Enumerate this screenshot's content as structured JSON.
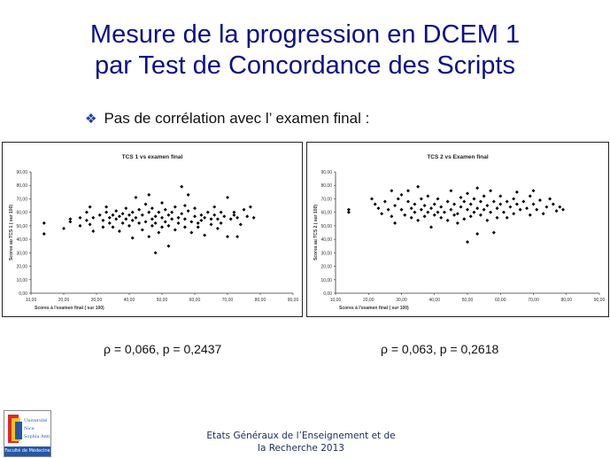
{
  "slide": {
    "title_line1": "Mesure de la progression en DCEM 1",
    "title_line2": "par Test de Concordance des Scripts",
    "bullet_text": "Pas de corrélation avec l’ examen final :",
    "stat_left": "ρ = 0,066, p = 0,2437",
    "stat_right": "ρ = 0,063, p = 0,2618",
    "footer_line1": "Etats Généraux de l’Enseignement et de",
    "footer_line2": "la Recherche 2013",
    "logo_text": "Université Nice Sophia Antipolis",
    "logo_faculty": "Faculté de Médecine"
  },
  "colors": {
    "title": "#0d0f8a",
    "bullet_icon": "#1f3fa8",
    "marker": "#000000",
    "logo_bar": "#2458a6"
  },
  "icons": {
    "bullet": "diamond-cluster-icon"
  },
  "chart_data": [
    {
      "type": "scatter",
      "title": "TCS 1  vs examen final",
      "xlabel": "Scores à l'examen final ( sur 100)",
      "ylabel": "Scores au TCS 1 ( sur 100)",
      "xlim": [
        10,
        90
      ],
      "ylim": [
        0,
        90
      ],
      "x_ticks": [
        "10,00",
        "20,00",
        "30,00",
        "40,00",
        "50,00",
        "60,00",
        "70,00",
        "80,00",
        "90,00"
      ],
      "y_ticks": [
        "0,00",
        "10,00",
        "20,00",
        "30,00",
        "40,00",
        "50,00",
        "60,00",
        "70,00",
        "80,00",
        "90,00"
      ],
      "grid": false,
      "legend": "none",
      "points": [
        [
          14,
          52
        ],
        [
          14,
          44
        ],
        [
          20,
          48
        ],
        [
          22,
          55
        ],
        [
          22,
          53
        ],
        [
          25,
          50
        ],
        [
          25,
          56
        ],
        [
          27,
          54
        ],
        [
          27,
          60
        ],
        [
          28,
          51
        ],
        [
          28,
          64
        ],
        [
          29,
          56
        ],
        [
          29,
          46
        ],
        [
          31,
          58
        ],
        [
          32,
          54
        ],
        [
          32,
          49
        ],
        [
          33,
          60
        ],
        [
          33,
          64
        ],
        [
          34,
          56
        ],
        [
          34,
          52
        ],
        [
          35,
          58
        ],
        [
          35,
          49
        ],
        [
          36,
          55
        ],
        [
          36,
          61
        ],
        [
          37,
          57
        ],
        [
          37,
          46
        ],
        [
          38,
          52
        ],
        [
          38,
          59
        ],
        [
          39,
          55
        ],
        [
          39,
          63
        ],
        [
          40,
          50
        ],
        [
          40,
          58
        ],
        [
          41,
          54
        ],
        [
          41,
          41
        ],
        [
          41,
          60
        ],
        [
          42,
          56
        ],
        [
          42,
          71
        ],
        [
          43,
          52
        ],
        [
          43,
          62
        ],
        [
          44,
          47
        ],
        [
          44,
          58
        ],
        [
          45,
          53
        ],
        [
          45,
          66
        ],
        [
          46,
          60
        ],
        [
          46,
          42
        ],
        [
          46,
          73
        ],
        [
          47,
          55
        ],
        [
          47,
          50
        ],
        [
          47,
          63
        ],
        [
          48,
          57
        ],
        [
          48,
          30
        ],
        [
          48,
          52
        ],
        [
          49,
          60
        ],
        [
          49,
          45
        ],
        [
          50,
          56
        ],
        [
          50,
          67
        ],
        [
          50,
          49
        ],
        [
          51,
          53
        ],
        [
          51,
          62
        ],
        [
          52,
          58
        ],
        [
          52,
          50
        ],
        [
          52,
          35
        ],
        [
          53,
          55
        ],
        [
          53,
          60
        ],
        [
          54,
          47
        ],
        [
          54,
          64
        ],
        [
          55,
          56
        ],
        [
          55,
          52
        ],
        [
          56,
          59
        ],
        [
          56,
          79
        ],
        [
          57,
          49
        ],
        [
          57,
          65
        ],
        [
          57,
          55
        ],
        [
          58,
          61
        ],
        [
          58,
          73
        ],
        [
          59,
          53
        ],
        [
          59,
          45
        ],
        [
          60,
          57
        ],
        [
          60,
          63
        ],
        [
          61,
          52
        ],
        [
          61,
          49
        ],
        [
          62,
          58
        ],
        [
          62,
          54
        ],
        [
          63,
          43
        ],
        [
          63,
          56
        ],
        [
          64,
          60
        ],
        [
          65,
          55
        ],
        [
          65,
          51
        ],
        [
          66,
          58
        ],
        [
          66,
          64
        ],
        [
          67,
          48
        ],
        [
          67,
          55
        ],
        [
          68,
          60
        ],
        [
          68,
          52
        ],
        [
          69,
          57
        ],
        [
          70,
          71
        ],
        [
          70,
          42
        ],
        [
          71,
          55
        ],
        [
          72,
          58
        ],
        [
          72,
          60
        ],
        [
          73,
          56
        ],
        [
          73,
          42
        ],
        [
          74,
          51
        ],
        [
          75,
          62
        ],
        [
          76,
          57
        ],
        [
          77,
          64
        ],
        [
          78,
          56
        ]
      ]
    },
    {
      "type": "scatter",
      "title": "TCS 2  vs Examen final",
      "xlabel": "Scores à l'examen final ( sur 100)",
      "ylabel": "Scores au TCS 2 ( sur 100)",
      "xlim": [
        10,
        90
      ],
      "ylim": [
        0,
        90
      ],
      "x_ticks": [
        "10,00",
        "20,00",
        "30,00",
        "40,00",
        "50,00",
        "60,00",
        "70,00",
        "80,00",
        "90,00"
      ],
      "y_ticks": [
        "0,00",
        "10,00",
        "20,00",
        "30,00",
        "40,00",
        "50,00",
        "60,00",
        "70,00",
        "80,00",
        "90,00"
      ],
      "grid": false,
      "legend": "none",
      "points": [
        [
          14,
          62
        ],
        [
          14,
          60
        ],
        [
          21,
          70
        ],
        [
          22,
          66
        ],
        [
          23,
          63
        ],
        [
          24,
          59
        ],
        [
          25,
          68
        ],
        [
          26,
          62
        ],
        [
          27,
          76
        ],
        [
          27,
          57
        ],
        [
          28,
          65
        ],
        [
          28,
          52
        ],
        [
          29,
          70
        ],
        [
          30,
          73
        ],
        [
          30,
          62
        ],
        [
          31,
          58
        ],
        [
          32,
          68
        ],
        [
          32,
          76
        ],
        [
          33,
          63
        ],
        [
          33,
          56
        ],
        [
          34,
          66
        ],
        [
          34,
          60
        ],
        [
          35,
          79
        ],
        [
          35,
          54
        ],
        [
          36,
          70
        ],
        [
          36,
          62
        ],
        [
          37,
          57
        ],
        [
          37,
          65
        ],
        [
          38,
          60
        ],
        [
          38,
          72
        ],
        [
          39,
          63
        ],
        [
          39,
          49
        ],
        [
          40,
          66
        ],
        [
          40,
          58
        ],
        [
          41,
          70
        ],
        [
          41,
          60
        ],
        [
          42,
          56
        ],
        [
          42,
          64
        ],
        [
          43,
          60
        ],
        [
          44,
          68
        ],
        [
          44,
          54
        ],
        [
          45,
          62
        ],
        [
          45,
          76
        ],
        [
          46,
          58
        ],
        [
          46,
          66
        ],
        [
          47,
          59
        ],
        [
          47,
          52
        ],
        [
          48,
          71
        ],
        [
          48,
          64
        ],
        [
          49,
          55
        ],
        [
          49,
          68
        ],
        [
          50,
          62
        ],
        [
          50,
          38
        ],
        [
          50,
          74
        ],
        [
          51,
          57
        ],
        [
          51,
          66
        ],
        [
          52,
          60
        ],
        [
          52,
          70
        ],
        [
          53,
          63
        ],
        [
          53,
          44
        ],
        [
          53,
          78
        ],
        [
          54,
          58
        ],
        [
          54,
          68
        ],
        [
          55,
          62
        ],
        [
          55,
          72
        ],
        [
          56,
          54
        ],
        [
          56,
          65
        ],
        [
          57,
          60
        ],
        [
          57,
          76
        ],
        [
          58,
          68
        ],
        [
          58,
          45
        ],
        [
          59,
          56
        ],
        [
          59,
          63
        ],
        [
          60,
          66
        ],
        [
          60,
          72
        ],
        [
          61,
          60
        ],
        [
          62,
          68
        ],
        [
          62,
          56
        ],
        [
          63,
          64
        ],
        [
          64,
          70
        ],
        [
          64,
          59
        ],
        [
          65,
          66
        ],
        [
          65,
          75
        ],
        [
          66,
          62
        ],
        [
          67,
          68
        ],
        [
          68,
          63
        ],
        [
          69,
          72
        ],
        [
          69,
          58
        ],
        [
          70,
          66
        ],
        [
          70,
          76
        ],
        [
          71,
          62
        ],
        [
          72,
          69
        ],
        [
          73,
          59
        ],
        [
          74,
          64
        ],
        [
          75,
          70
        ],
        [
          76,
          66
        ],
        [
          77,
          61
        ],
        [
          78,
          64
        ],
        [
          79,
          62
        ]
      ]
    }
  ]
}
